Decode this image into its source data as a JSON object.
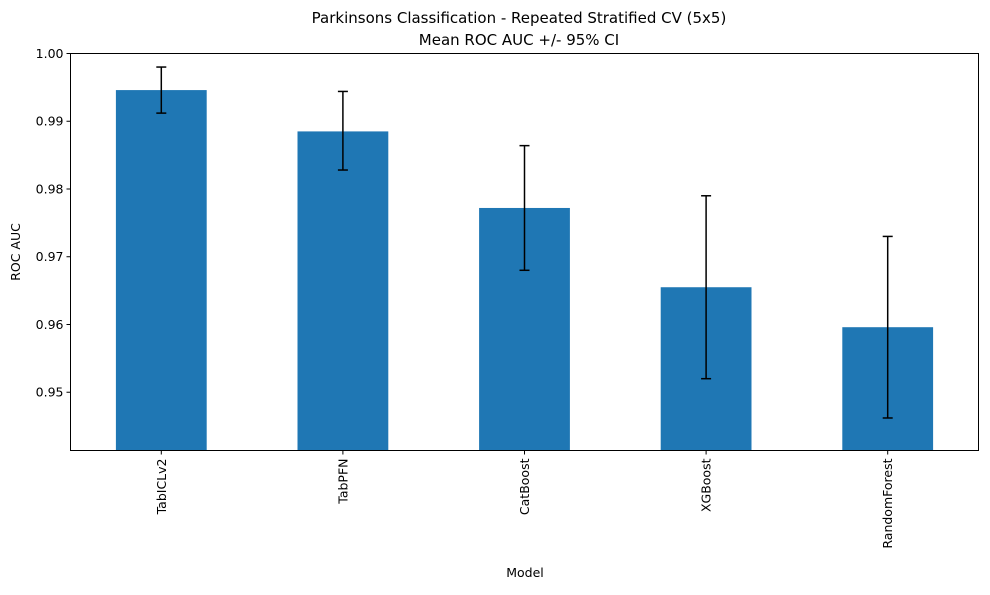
{
  "chart_data": {
    "type": "bar",
    "title": "Parkinsons Classification - Repeated Stratified CV (5x5)",
    "subtitle": "Mean ROC AUC +/- 95% CI",
    "xlabel": "Model",
    "ylabel": "ROC AUC",
    "categories": [
      "TabICLv2",
      "TabPFN",
      "CatBoost",
      "XGBoost",
      "RandomForest"
    ],
    "values": [
      0.9946,
      0.9885,
      0.9772,
      0.9655,
      0.9596
    ],
    "error_low": [
      0.9912,
      0.9828,
      0.968,
      0.952,
      0.9462
    ],
    "error_high": [
      0.998,
      0.9944,
      0.9864,
      0.979,
      0.973
    ],
    "ylim": [
      0.9414,
      1.0
    ],
    "yticks": [
      "0.95",
      "0.96",
      "0.97",
      "0.98",
      "0.99",
      "1.00"
    ],
    "ytick_values": [
      0.95,
      0.96,
      0.97,
      0.98,
      0.99,
      1.0
    ],
    "grid": false,
    "legend": "none",
    "bar_color": "#1f77b4",
    "error_color": "#000000"
  }
}
